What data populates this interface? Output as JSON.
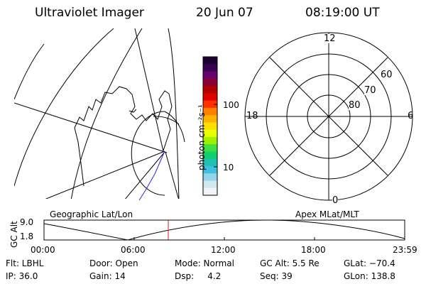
{
  "header": {
    "title": "Ultraviolet Imager",
    "date": "20 Jun 07",
    "time": "08:19:00 UT"
  },
  "colorbar": {
    "unit_label": "photon cm⁻²s⁻¹",
    "tick_labels": [
      "100",
      "10"
    ],
    "colors": [
      "#1a0030",
      "#3a0050",
      "#6a0070",
      "#8a0030",
      "#b00000",
      "#e00000",
      "#ff3000",
      "#ff8000",
      "#ffb000",
      "#ffe000",
      "#e8ff00",
      "#a0f000",
      "#40e040",
      "#10d070",
      "#20c0b0",
      "#40c0e0",
      "#90d8e8",
      "#d0e8f0",
      "#f0f4f8"
    ]
  },
  "left_panel": {
    "label": "Geographic Lat/Lon"
  },
  "right_panel": {
    "label": "Apex MLat/MLT",
    "mlt_labels": {
      "top": "12",
      "left": "18",
      "right": "6",
      "bottom": "0"
    },
    "lat_labels": [
      "60",
      "70",
      "80"
    ]
  },
  "timeline": {
    "ylabel": "GC Alt",
    "ticks_y": [
      "9.0",
      "1.8"
    ],
    "ticks_x": [
      "00:00",
      "06:00",
      "12:00",
      "18:00",
      "23:59"
    ]
  },
  "info": {
    "col1": [
      "Flt: LBHL",
      "IP: 36.0"
    ],
    "col2": [
      "Door: Open",
      "Gain: 14"
    ],
    "col3": [
      "Mode: Normal",
      "Dsp:     4.2"
    ],
    "col4": [
      "GC Alt: 5.5 Re",
      "Seq: 39"
    ],
    "col5": [
      "GLat: −70.4",
      "GLon: 138.8"
    ]
  }
}
